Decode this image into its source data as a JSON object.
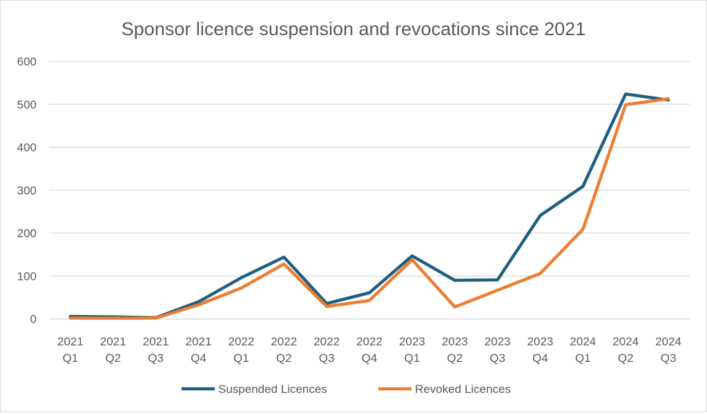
{
  "chart_data": {
    "type": "line",
    "title": "Sponsor licence suspension and revocations since 2021",
    "xlabel": "",
    "ylabel": "",
    "categories": [
      [
        "2021",
        "Q1"
      ],
      [
        "2021",
        "Q2"
      ],
      [
        "2021",
        "Q3"
      ],
      [
        "2021",
        "Q4"
      ],
      [
        "2022",
        "Q1"
      ],
      [
        "2022",
        "Q2"
      ],
      [
        "2022",
        "Q3"
      ],
      [
        "2022",
        "Q4"
      ],
      [
        "2023",
        "Q1"
      ],
      [
        "2023",
        "Q2"
      ],
      [
        "2023",
        "Q3"
      ],
      [
        "2023",
        "Q4"
      ],
      [
        "2024",
        "Q1"
      ],
      [
        "2024",
        "Q2"
      ],
      [
        "2024",
        "Q3"
      ]
    ],
    "ylim": [
      0,
      600
    ],
    "yticks": [
      0,
      100,
      200,
      300,
      400,
      500,
      600
    ],
    "grid": true,
    "legend": "bottom",
    "series": [
      {
        "name": "Suspended Licences",
        "color": "#1f5f7f",
        "values": [
          6,
          5,
          3,
          40,
          96,
          144,
          36,
          61,
          147,
          90,
          91,
          241,
          309,
          524,
          510
        ]
      },
      {
        "name": "Revoked Licences",
        "color": "#ed7d31",
        "values": [
          2,
          2,
          2,
          33,
          72,
          128,
          29,
          43,
          138,
          28,
          67,
          106,
          209,
          499,
          513
        ]
      }
    ]
  }
}
